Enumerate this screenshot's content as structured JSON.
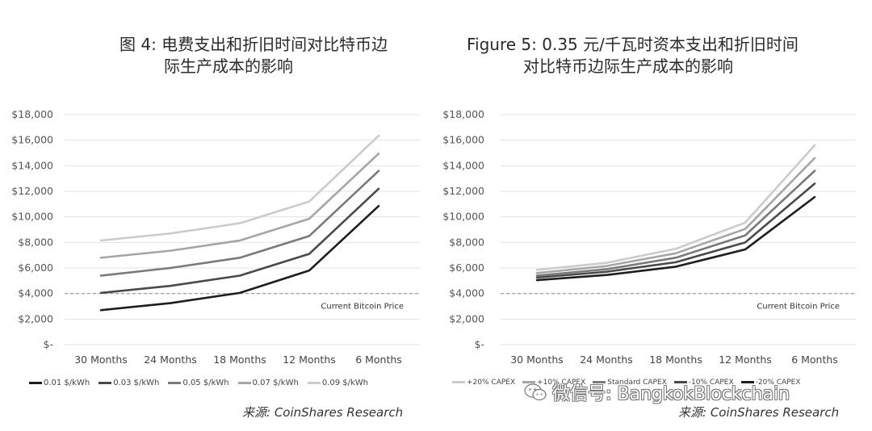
{
  "left": {
    "title_line1": "图 4: 电费支出和折旧时间对比特币边",
    "title_line2": "际生产成本的影响",
    "source": "来源: CoinShares Research"
  },
  "right": {
    "title_line1": "Figure 5:  0.35 元/千瓦时资本支出和折旧时间",
    "title_line2": "对比特币边际生产成本的影响",
    "source": "来源: CoinShares Research"
  },
  "watermark": "微信号: BangkokBlockchain",
  "chart_data": [
    {
      "type": "line",
      "title": "图 4: 电费支出和折旧时间对比特币边际生产成本的影响",
      "categories": [
        "30 Months",
        "24 Months",
        "18 Months",
        "12 Months",
        "6 Months"
      ],
      "yticks": [
        "$18,000",
        "$16,000",
        "$14,000",
        "$12,000",
        "$10,000",
        "$8,000",
        "$6,000",
        "$4,000",
        "$2,000",
        "$-"
      ],
      "ylim": [
        0,
        18000
      ],
      "grid": true,
      "legend_position": "bottom",
      "reference_line": {
        "label": "Current Bitcoin Price",
        "value": 4000,
        "style": "dashed"
      },
      "series": [
        {
          "name": "0.01 $/kWh",
          "color": "#1e1e1e",
          "values": [
            2700,
            3250,
            4050,
            5800,
            10850
          ]
        },
        {
          "name": "0.03 $/kWh",
          "color": "#4a4a4a",
          "values": [
            4050,
            4600,
            5400,
            7100,
            12200
          ]
        },
        {
          "name": "0.05 $/kWh",
          "color": "#7a7a7a",
          "values": [
            5400,
            6000,
            6800,
            8500,
            13600
          ]
        },
        {
          "name": "0.07 $/kWh",
          "color": "#a6a6a6",
          "values": [
            6800,
            7350,
            8150,
            9850,
            14950
          ]
        },
        {
          "name": "0.09 $/kWh",
          "color": "#cbcbcb",
          "values": [
            8150,
            8700,
            9500,
            11200,
            16350
          ]
        }
      ]
    },
    {
      "type": "line",
      "title": "Figure 5: 0.35 元/千瓦时资本支出和折旧时间对比特币边际生产成本的影响",
      "categories": [
        "30 Months",
        "24 Months",
        "18 Months",
        "12 Months",
        "6 Months"
      ],
      "yticks": [
        "$18,000",
        "$16,000",
        "$14,000",
        "$12,000",
        "$10,000",
        "$8,000",
        "$6,000",
        "$4,000",
        "$2,000",
        "$-"
      ],
      "ylim": [
        0,
        18000
      ],
      "grid": true,
      "legend_position": "bottom",
      "reference_line": {
        "label": "Current Bitcoin Price",
        "value": 4000,
        "style": "dashed"
      },
      "series": [
        {
          "name": "+20% CAPEX",
          "color": "#cbcbcb",
          "values": [
            5850,
            6400,
            7500,
            9550,
            15600
          ]
        },
        {
          "name": "+10% CAPEX",
          "color": "#a6a6a6",
          "values": [
            5600,
            6150,
            7150,
            9050,
            14600
          ]
        },
        {
          "name": "Standard CAPEX",
          "color": "#7a7a7a",
          "values": [
            5400,
            5900,
            6800,
            8550,
            13600
          ]
        },
        {
          "name": "-10% CAPEX",
          "color": "#4a4a4a",
          "values": [
            5250,
            5700,
            6450,
            8000,
            12600
          ]
        },
        {
          "name": "-20% CAPEX",
          "color": "#1e1e1e",
          "values": [
            5050,
            5450,
            6100,
            7450,
            11550
          ]
        }
      ]
    }
  ]
}
